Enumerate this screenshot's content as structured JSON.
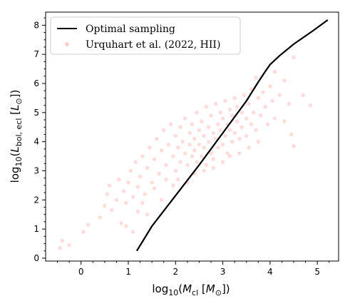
{
  "chart_data": {
    "type": "scatter",
    "xlabel": "log10(Mcl [M⊙])",
    "ylabel": "log10(Lbol,ecl [L⊙])",
    "xlim": [
      -0.75,
      5.45
    ],
    "ylim": [
      -0.1,
      8.45
    ],
    "xticks": [
      0,
      1,
      2,
      3,
      4,
      5
    ],
    "yticks": [
      0,
      1,
      2,
      3,
      4,
      5,
      6,
      7,
      8
    ],
    "legend_position": "upper-left",
    "series": [
      {
        "name": "Optimal sampling",
        "kind": "line",
        "color": "#000000",
        "x": [
          1.18,
          1.5,
          2.0,
          2.5,
          3.0,
          3.5,
          3.75,
          3.9,
          4.0,
          4.2,
          4.5,
          4.9,
          5.22
        ],
        "y": [
          0.25,
          1.1,
          2.15,
          3.2,
          4.3,
          5.4,
          6.05,
          6.42,
          6.65,
          6.95,
          7.35,
          7.8,
          8.18
        ]
      },
      {
        "name": "Urquhart et al. (2022, HII)",
        "kind": "scatter",
        "color": "#ff6666",
        "opacity": 0.22,
        "note_points": "representative sample of the point cloud",
        "points": [
          [
            -0.45,
            0.35
          ],
          [
            -0.4,
            0.6
          ],
          [
            -0.25,
            0.45
          ],
          [
            0.05,
            0.9
          ],
          [
            0.15,
            1.15
          ],
          [
            0.4,
            1.4
          ],
          [
            0.5,
            1.8
          ],
          [
            0.55,
            2.2
          ],
          [
            0.6,
            2.5
          ],
          [
            0.65,
            1.65
          ],
          [
            0.75,
            2.0
          ],
          [
            0.8,
            2.7
          ],
          [
            0.85,
            1.2
          ],
          [
            0.9,
            2.3
          ],
          [
            0.95,
            1.9
          ],
          [
            1.0,
            2.6
          ],
          [
            1.05,
            3.0
          ],
          [
            1.1,
            2.1
          ],
          [
            1.15,
            3.3
          ],
          [
            1.2,
            2.45
          ],
          [
            1.25,
            2.8
          ],
          [
            1.3,
            3.5
          ],
          [
            1.35,
            2.2
          ],
          [
            1.4,
            3.1
          ],
          [
            1.45,
            3.8
          ],
          [
            1.5,
            2.6
          ],
          [
            1.55,
            3.4
          ],
          [
            1.6,
            4.1
          ],
          [
            1.65,
            2.9
          ],
          [
            1.7,
            3.7
          ],
          [
            1.75,
            4.4
          ],
          [
            1.8,
            3.2
          ],
          [
            1.85,
            3.9
          ],
          [
            1.9,
            4.6
          ],
          [
            1.95,
            3.5
          ],
          [
            2.0,
            4.2
          ],
          [
            2.0,
            3.0
          ],
          [
            2.05,
            3.8
          ],
          [
            2.1,
            4.5
          ],
          [
            2.1,
            3.3
          ],
          [
            2.15,
            4.0
          ],
          [
            2.2,
            3.6
          ],
          [
            2.2,
            4.8
          ],
          [
            2.25,
            3.2
          ],
          [
            2.3,
            4.3
          ],
          [
            2.3,
            3.9
          ],
          [
            2.35,
            3.5
          ],
          [
            2.35,
            4.6
          ],
          [
            2.4,
            4.1
          ],
          [
            2.4,
            3.7
          ],
          [
            2.45,
            5.0
          ],
          [
            2.45,
            3.3
          ],
          [
            2.5,
            4.4
          ],
          [
            2.5,
            3.9
          ],
          [
            2.55,
            4.7
          ],
          [
            2.55,
            3.5
          ],
          [
            2.6,
            4.2
          ],
          [
            2.6,
            3.8
          ],
          [
            2.65,
            5.2
          ],
          [
            2.65,
            3.2
          ],
          [
            2.7,
            4.5
          ],
          [
            2.7,
            4.0
          ],
          [
            2.75,
            3.6
          ],
          [
            2.75,
            4.9
          ],
          [
            2.8,
            4.3
          ],
          [
            2.8,
            3.4
          ],
          [
            2.85,
            5.3
          ],
          [
            2.85,
            4.1
          ],
          [
            2.9,
            4.6
          ],
          [
            2.9,
            3.8
          ],
          [
            2.95,
            5.0
          ],
          [
            2.95,
            4.4
          ],
          [
            3.0,
            4.8
          ],
          [
            3.0,
            3.9
          ],
          [
            3.05,
            5.4
          ],
          [
            3.05,
            4.2
          ],
          [
            3.1,
            4.6
          ],
          [
            3.1,
            3.6
          ],
          [
            3.15,
            5.1
          ],
          [
            3.15,
            4.4
          ],
          [
            3.2,
            4.9
          ],
          [
            3.2,
            4.0
          ],
          [
            3.25,
            5.5
          ],
          [
            3.25,
            4.3
          ],
          [
            3.3,
            4.7
          ],
          [
            3.3,
            5.2
          ],
          [
            3.35,
            4.1
          ],
          [
            3.4,
            5.0
          ],
          [
            3.4,
            4.5
          ],
          [
            3.45,
            5.6
          ],
          [
            3.5,
            4.8
          ],
          [
            3.5,
            4.2
          ],
          [
            3.55,
            5.3
          ],
          [
            3.6,
            4.6
          ],
          [
            3.6,
            5.8
          ],
          [
            3.65,
            5.0
          ],
          [
            3.7,
            4.4
          ],
          [
            3.7,
            6.2
          ],
          [
            3.75,
            5.5
          ],
          [
            3.8,
            4.9
          ],
          [
            3.85,
            5.7
          ],
          [
            3.9,
            5.2
          ],
          [
            3.95,
            4.6
          ],
          [
            4.0,
            5.9
          ],
          [
            4.05,
            5.4
          ],
          [
            4.1,
            4.8
          ],
          [
            4.1,
            6.4
          ],
          [
            4.2,
            5.6
          ],
          [
            4.3,
            6.1
          ],
          [
            4.3,
            4.7
          ],
          [
            4.4,
            5.3
          ],
          [
            4.45,
            4.25
          ],
          [
            4.5,
            3.85
          ],
          [
            4.5,
            6.9
          ],
          [
            4.7,
            5.6
          ],
          [
            4.85,
            5.25
          ],
          [
            1.55,
            2.4
          ],
          [
            1.7,
            2.0
          ],
          [
            1.8,
            2.7
          ],
          [
            1.95,
            2.5
          ],
          [
            2.05,
            2.7
          ],
          [
            2.25,
            2.6
          ],
          [
            2.4,
            2.9
          ],
          [
            2.6,
            3.0
          ],
          [
            2.8,
            3.1
          ],
          [
            3.0,
            3.3
          ],
          [
            3.15,
            3.5
          ],
          [
            3.35,
            3.6
          ],
          [
            3.55,
            3.8
          ],
          [
            3.75,
            4.0
          ],
          [
            1.2,
            1.6
          ],
          [
            1.4,
            1.5
          ],
          [
            0.95,
            1.1
          ],
          [
            1.1,
            0.9
          ],
          [
            1.3,
            1.9
          ]
        ]
      }
    ]
  }
}
